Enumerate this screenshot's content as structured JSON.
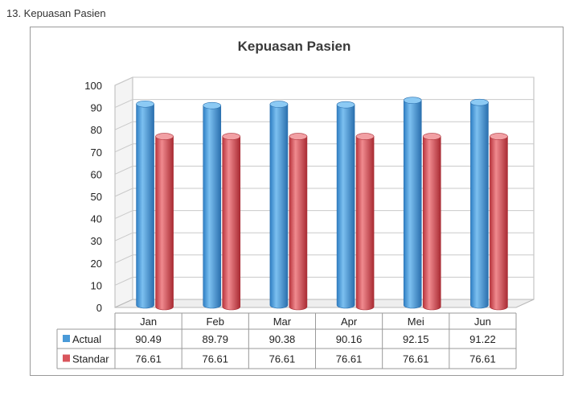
{
  "heading": "13. Kepuasan Pasien",
  "chart_data": {
    "type": "bar",
    "title": "Kepuasan Pasien",
    "categories": [
      "Jan",
      "Feb",
      "Mar",
      "Apr",
      "Mei",
      "Jun"
    ],
    "series": [
      {
        "name": "Actual",
        "values": [
          90.49,
          89.79,
          90.38,
          90.16,
          92.15,
          91.22
        ],
        "color": "#4a9ad8"
      },
      {
        "name": "Standar",
        "values": [
          76.61,
          76.61,
          76.61,
          76.61,
          76.61,
          76.61
        ],
        "color": "#d9555c"
      }
    ],
    "table_values": [
      [
        "90.49",
        "89.79",
        "90.38",
        "90.16",
        "92.15",
        "91.22"
      ],
      [
        "76.61",
        "76.61",
        "76.61",
        "76.61",
        "76.61",
        "76.61"
      ]
    ],
    "ylim": [
      0,
      100
    ],
    "yticks": [
      "0",
      "10",
      "20",
      "30",
      "40",
      "50",
      "60",
      "70",
      "80",
      "90",
      "100"
    ],
    "grid": true,
    "legend": "data-table",
    "style": "3d-cylinder"
  }
}
